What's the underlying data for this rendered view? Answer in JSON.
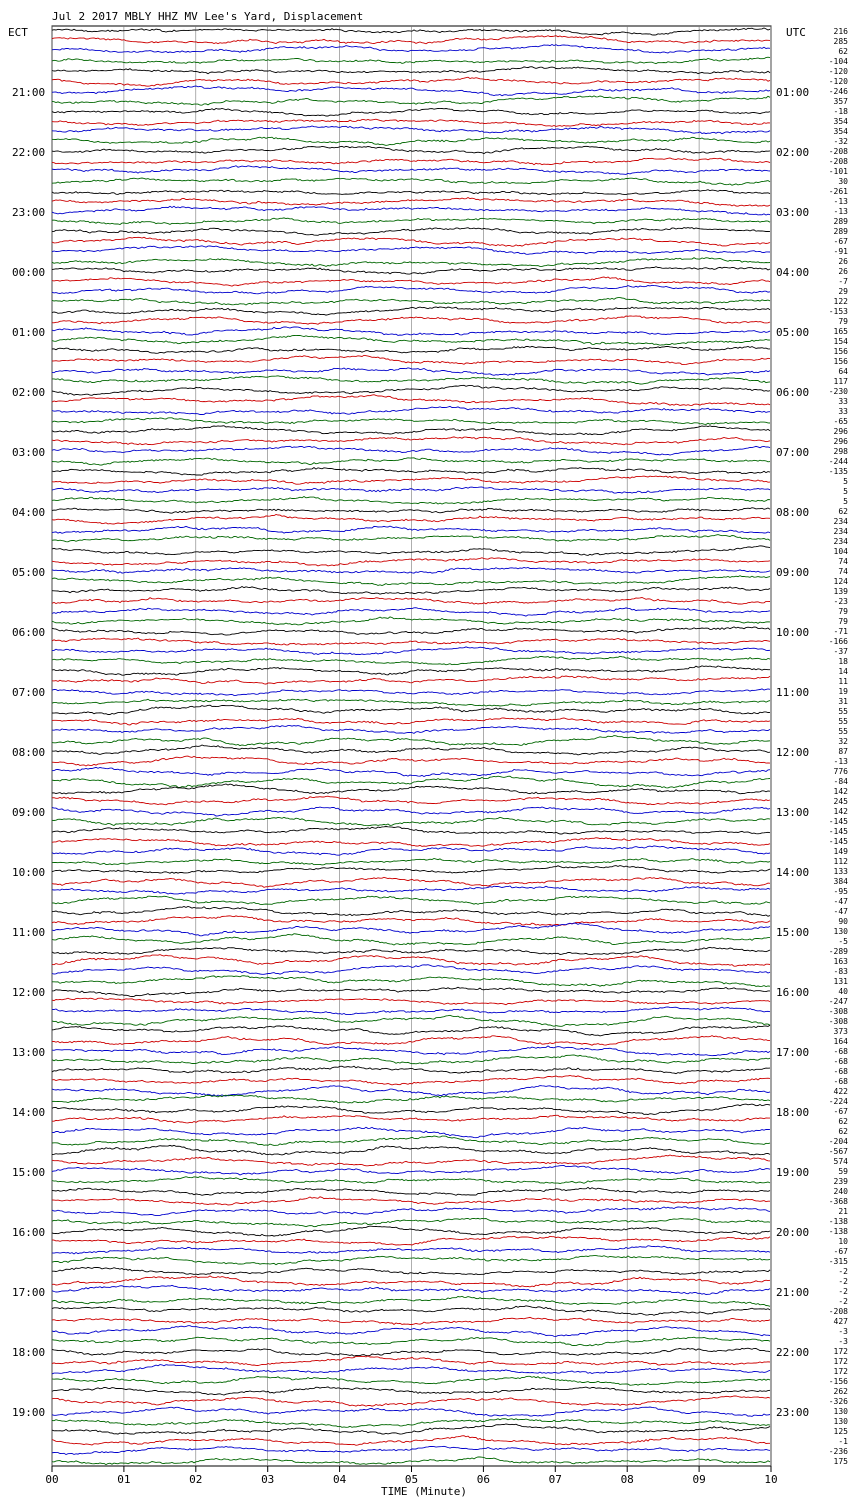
{
  "chart_data": {
    "type": "line",
    "title": "Jul  2 2017 MBLY HHZ MV Lee's Yard, Displacement",
    "xlabel": "TIME (Minute)",
    "left_axis_label": "ECT",
    "right_axis_label": "UTC",
    "x_ticks": [
      "00",
      "01",
      "02",
      "03",
      "04",
      "05",
      "06",
      "07",
      "08",
      "09",
      "10"
    ],
    "xlim": [
      0,
      10
    ],
    "grid": "vertical lines at each minute",
    "trace_colors": [
      "#000000",
      "#cc0000",
      "#0000cc",
      "#006600"
    ],
    "traces_per_hour": 6,
    "left_hour_labels": [
      "21:00",
      "22:00",
      "23:00",
      "00:00",
      "01:00",
      "02:00",
      "03:00",
      "04:00",
      "05:00",
      "06:00",
      "07:00",
      "08:00",
      "09:00",
      "10:00",
      "11:00",
      "12:00",
      "13:00",
      "14:00",
      "15:00",
      "16:00",
      "17:00",
      "18:00",
      "19:00"
    ],
    "right_hour_labels": [
      "01:00",
      "02:00",
      "03:00",
      "04:00",
      "05:00",
      "06:00",
      "07:00",
      "08:00",
      "09:00",
      "10:00",
      "11:00",
      "12:00",
      "13:00",
      "14:00",
      "15:00",
      "16:00",
      "17:00",
      "18:00",
      "19:00",
      "20:00",
      "21:00",
      "22:00",
      "23:00"
    ],
    "trace_offsets": [
      "216",
      "285",
      "62",
      "-104",
      "-120",
      "-120",
      "-246",
      "357",
      "-18",
      "354",
      "354",
      "-32",
      "-208",
      "-208",
      "-101",
      "30",
      "-261",
      "-13",
      "-13",
      "289",
      "289",
      "-67",
      "-91",
      "26",
      "26",
      "-7",
      "29",
      "122",
      "-153",
      "79",
      "165",
      "154",
      "156",
      "156",
      "64",
      "117",
      "-230",
      "33",
      "33",
      "-65",
      "296",
      "296",
      "298",
      "-244",
      "-135",
      "5",
      "5",
      "5",
      "62",
      "234",
      "234",
      "234",
      "104",
      "74",
      "74",
      "124",
      "139",
      "-23",
      "79",
      "79",
      "-71",
      "-166",
      "-37",
      "18",
      "14",
      "11",
      "19",
      "31",
      "55",
      "55",
      "55",
      "32",
      "87",
      "-13",
      "776",
      "-84",
      "142",
      "245",
      "142",
      "-145",
      "-145",
      "-145",
      "149",
      "112",
      "133",
      "384",
      "-95",
      "-47",
      "-47",
      "90",
      "130",
      "-5",
      "-289",
      "163",
      "-83",
      "131",
      "40",
      "-247",
      "-308",
      "-308",
      "373",
      "164",
      "-68",
      "-68",
      "-68",
      "-68",
      "422",
      "-224",
      "-67",
      "62",
      "62",
      "-204",
      "-567",
      "574",
      "59",
      "239",
      "240",
      "-368",
      "21",
      "-138",
      "-138",
      "10",
      "-67",
      "-315",
      "-2",
      "-2",
      "-2",
      "-2",
      "-208",
      "427",
      "-3",
      "-3",
      "172",
      "172",
      "172",
      "-156",
      "262",
      "-326",
      "130",
      "130",
      "125",
      "-1",
      "-236",
      "175"
    ]
  }
}
